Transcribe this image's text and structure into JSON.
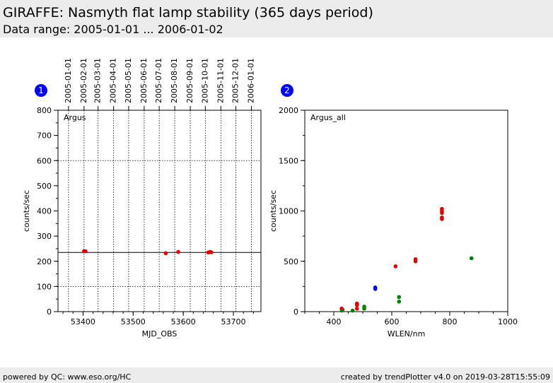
{
  "header": {
    "title": "GIRAFFE: Nasmyth flat lamp stability (365 days period)",
    "subtitle": "Data range: 2005-01-01 ... 2006-01-02"
  },
  "footer": {
    "left": "powered by QC: www.eso.org/HC",
    "right": "created by trendPlotter v4.0 on 2019-03-28T15:55:09"
  },
  "chart_data": [
    {
      "type": "scatter",
      "badge": "1",
      "label": "Argus",
      "xlabel": "MJD_OBS",
      "ylabel": "counts/sec",
      "xlim": [
        53350,
        53755
      ],
      "ylim": [
        0,
        800
      ],
      "xticks": [
        53400,
        53500,
        53600,
        53700
      ],
      "yticks": [
        0,
        100,
        200,
        300,
        400,
        500,
        600,
        700,
        800
      ],
      "dotted_hlines": [
        100,
        600
      ],
      "reference_line": 235,
      "date_ticks": [
        {
          "x": 53371,
          "label": "2005-01-01"
        },
        {
          "x": 53402,
          "label": "2005-02-01"
        },
        {
          "x": 53430,
          "label": "2005-03-01"
        },
        {
          "x": 53461,
          "label": "2005-04-01"
        },
        {
          "x": 53491,
          "label": "2005-05-01"
        },
        {
          "x": 53522,
          "label": "2005-06-01"
        },
        {
          "x": 53552,
          "label": "2005-07-01"
        },
        {
          "x": 53583,
          "label": "2005-08-01"
        },
        {
          "x": 53614,
          "label": "2005-09-01"
        },
        {
          "x": 53644,
          "label": "2005-10-01"
        },
        {
          "x": 53675,
          "label": "2005-11-01"
        },
        {
          "x": 53705,
          "label": "2005-12-01"
        },
        {
          "x": 53736,
          "label": "2006-01-01"
        }
      ],
      "points": [
        {
          "x": 53402,
          "y": 240,
          "color": "#e00000"
        },
        {
          "x": 53405,
          "y": 240,
          "color": "#e00000"
        },
        {
          "x": 53565,
          "y": 232,
          "color": "#e00000"
        },
        {
          "x": 53590,
          "y": 237,
          "color": "#e00000"
        },
        {
          "x": 53650,
          "y": 235,
          "color": "#e00000"
        },
        {
          "x": 53653,
          "y": 237,
          "color": "#e00000"
        },
        {
          "x": 53656,
          "y": 236,
          "color": "#e00000"
        }
      ]
    },
    {
      "type": "scatter",
      "badge": "2",
      "label": "Argus_all",
      "xlabel": "WLEN/nm",
      "ylabel": "counts/sec",
      "xlim": [
        300,
        1000
      ],
      "ylim": [
        0,
        2000
      ],
      "xticks": [
        400,
        600,
        800,
        1000
      ],
      "yticks": [
        0,
        500,
        1000,
        1500,
        2000
      ],
      "points": [
        {
          "x": 427,
          "y": 30,
          "color": "#e00000"
        },
        {
          "x": 430,
          "y": 20,
          "color": "#e00000"
        },
        {
          "x": 428,
          "y": 10,
          "color": "#008000"
        },
        {
          "x": 465,
          "y": 10,
          "color": "#008000"
        },
        {
          "x": 480,
          "y": 80,
          "color": "#e00000"
        },
        {
          "x": 480,
          "y": 65,
          "color": "#e00000"
        },
        {
          "x": 480,
          "y": 30,
          "color": "#e00000"
        },
        {
          "x": 505,
          "y": 50,
          "color": "#008000"
        },
        {
          "x": 505,
          "y": 30,
          "color": "#008000"
        },
        {
          "x": 543,
          "y": 240,
          "color": "#0000e0"
        },
        {
          "x": 543,
          "y": 225,
          "color": "#0000e0"
        },
        {
          "x": 613,
          "y": 450,
          "color": "#e00000"
        },
        {
          "x": 625,
          "y": 145,
          "color": "#008000"
        },
        {
          "x": 625,
          "y": 100,
          "color": "#008000"
        },
        {
          "x": 682,
          "y": 520,
          "color": "#e00000"
        },
        {
          "x": 682,
          "y": 500,
          "color": "#e00000"
        },
        {
          "x": 773,
          "y": 1020,
          "color": "#e00000"
        },
        {
          "x": 773,
          "y": 1000,
          "color": "#e00000"
        },
        {
          "x": 773,
          "y": 980,
          "color": "#e00000"
        },
        {
          "x": 773,
          "y": 935,
          "color": "#e00000"
        },
        {
          "x": 773,
          "y": 920,
          "color": "#e00000"
        },
        {
          "x": 875,
          "y": 530,
          "color": "#008000"
        }
      ]
    }
  ]
}
